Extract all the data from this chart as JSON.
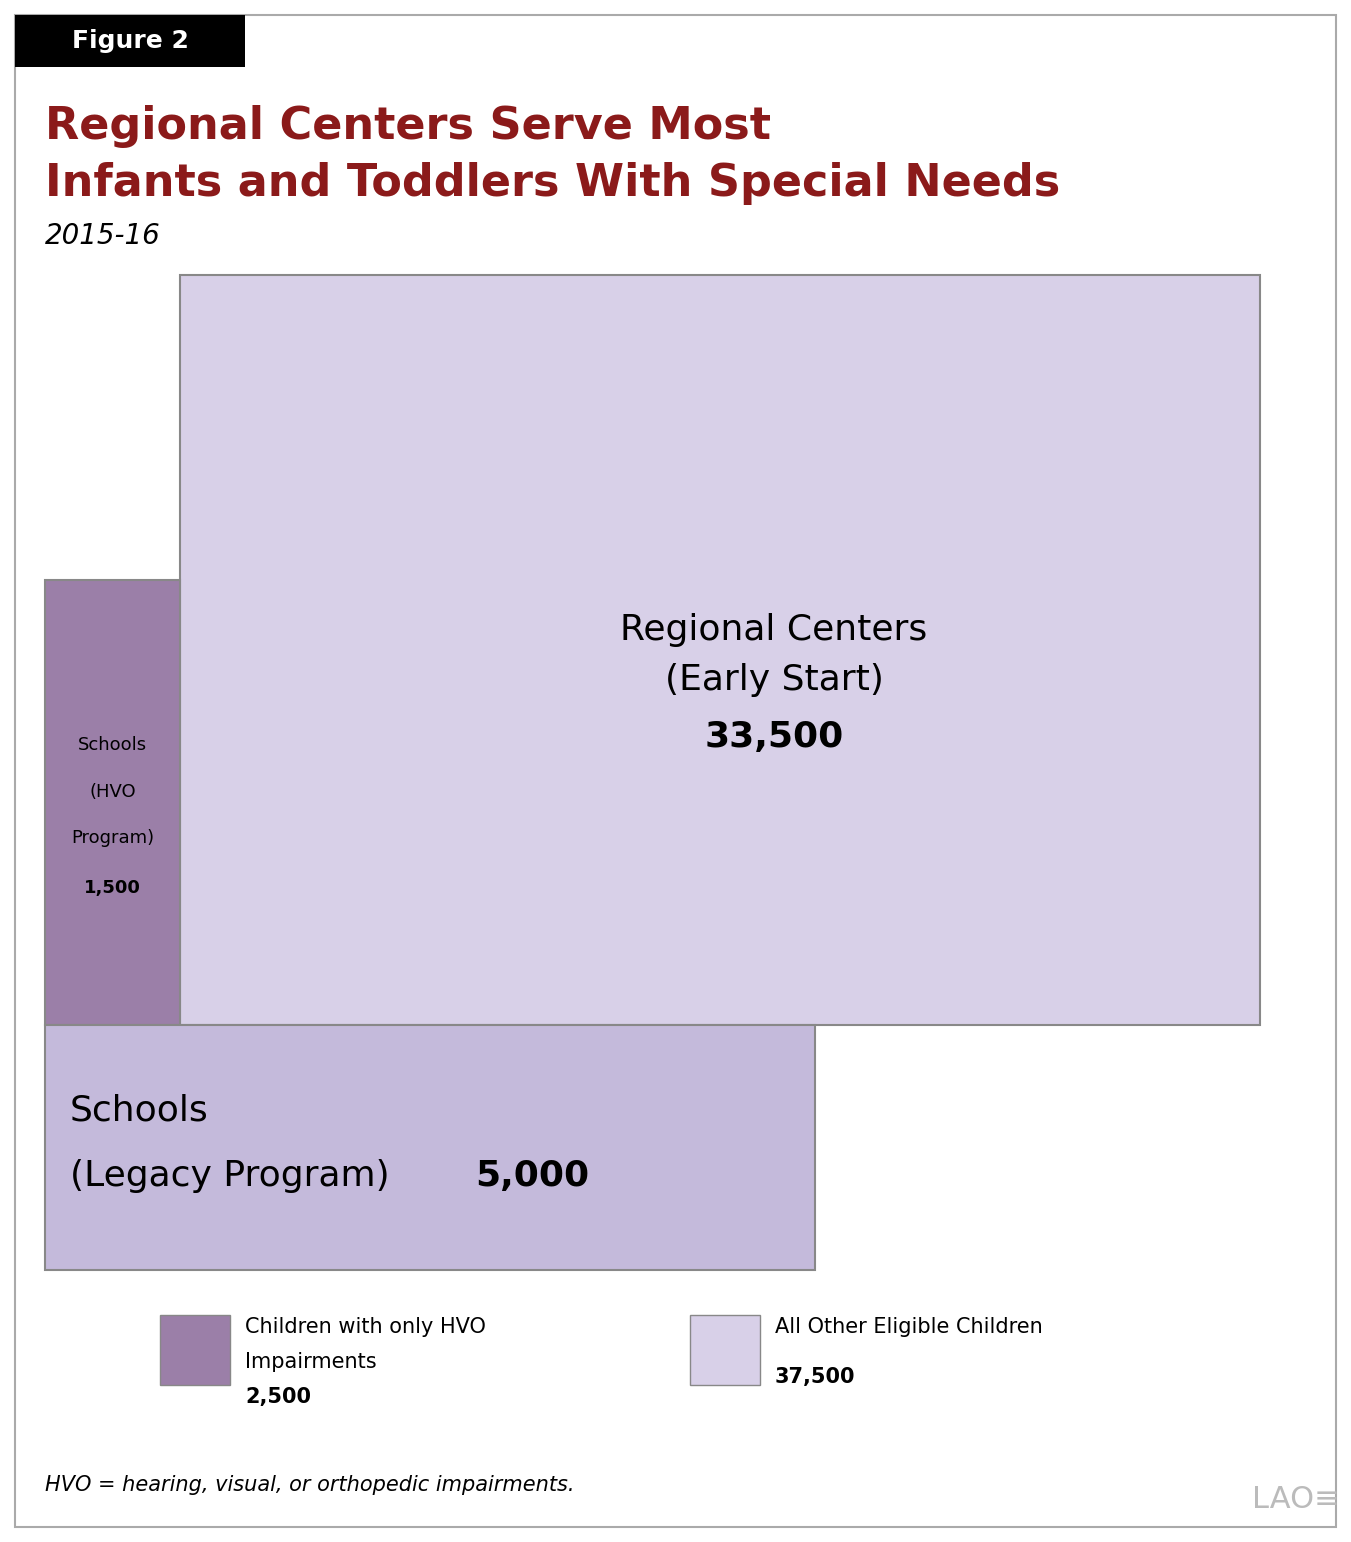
{
  "title_line1": "Regional Centers Serve Most",
  "title_line2": "Infants and Toddlers With Special Needs",
  "subtitle": "2015-16",
  "figure_label": "Figure 2",
  "title_color": "#8B1A1A",
  "subtitle_color": "#000000",
  "figure_label_color": "#FFFFFF",
  "figure_label_bg": "#000000",
  "background_color": "#FFFFFF",
  "color_hvo": "#9B7FA8",
  "color_other": "#D8D0E8",
  "color_border": "#888888",
  "color_legacy": "#C4BADB",
  "figsize": [
    13.51,
    15.42
  ],
  "dpi": 100,
  "outer_border_color": "#AAAAAA",
  "footnote": "HVO = hearing, visual, or orthopedic impairments.",
  "legend": [
    {
      "color": "#9B7FA8",
      "label_line1": "Children with only HVO",
      "label_line2": "Impairments",
      "label_value": "2,500"
    },
    {
      "color": "#D8D0E8",
      "label_line1": "All Other Eligible Children",
      "label_line2": "",
      "label_value": "37,500"
    }
  ]
}
